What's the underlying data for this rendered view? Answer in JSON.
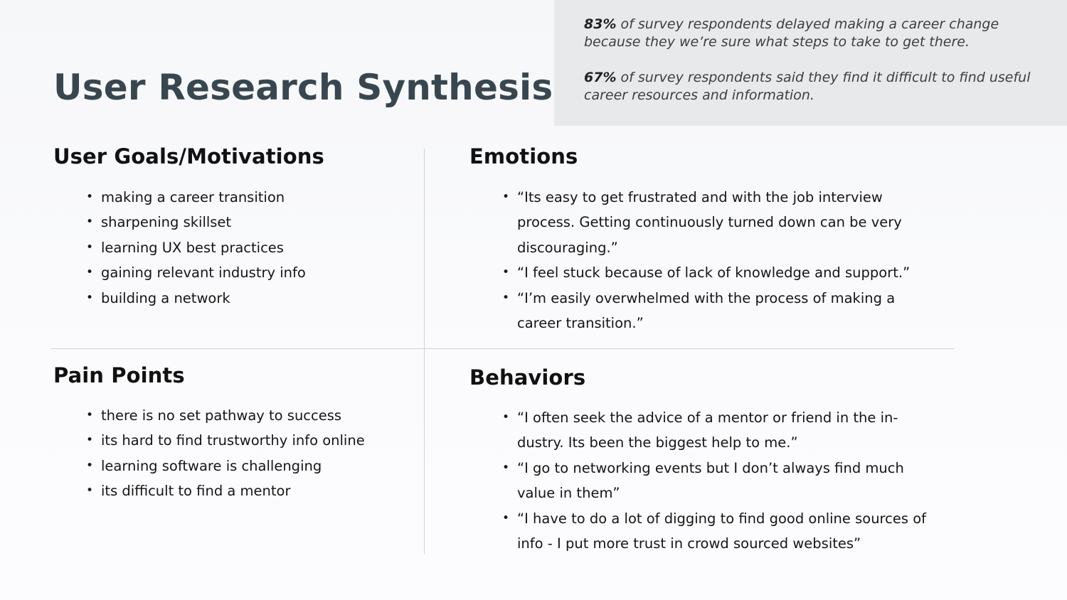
{
  "title": "User Research Synthesis",
  "stats": [
    {
      "percent": "83%",
      "text": " of survey respondents delayed making a career change because they we’re sure what steps to take to get there."
    },
    {
      "percent": "67%",
      "text": " of survey respondents said they find it difficult to find useful career resources and information."
    }
  ],
  "sections": {
    "goals": {
      "heading": "User Goals/Motivations",
      "items": [
        "making a career transition",
        "sharpening skillset",
        "learning UX best practices",
        "gaining relevant industry info",
        "building a network"
      ]
    },
    "emotions": {
      "heading": "Emotions",
      "items": [
        "“Its easy to get frustrated and with the job interview process. Getting continuously turned down can be very discouraging.”",
        "“I feel stuck because of lack of knowledge and support.”",
        "“I’m easily overwhelmed with the process of making a career transition.”"
      ]
    },
    "pain_points": {
      "heading": "Pain Points",
      "items": [
        "there is no set pathway to success",
        "its hard to find trustworthy info online",
        "learning software is challenging",
        "its difficult to find a mentor"
      ]
    },
    "behaviors": {
      "heading": "Behaviors",
      "items": [
        "“I often seek the advice of a mentor or friend in the in­dustry. Its been the biggest help to me.”",
        "“I go to networking events but I don’t always find much value in them”",
        "“I have to do a lot of digging to find good online sources of info - I put more trust in crowd sourced websites”"
      ]
    }
  }
}
